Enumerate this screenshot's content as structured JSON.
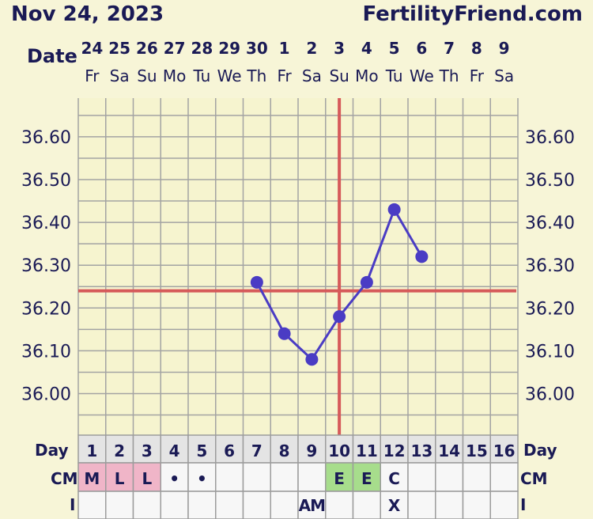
{
  "header": {
    "date_title": "Nov 24, 2023",
    "site": "FertilityFriend.com",
    "date_label": "Date",
    "day_label": "Day",
    "cm_label": "CM",
    "i_label": "I"
  },
  "colors": {
    "background": "#f7f5d7",
    "plot_bg": "#f6f4cf",
    "grid": "#a3a3a3",
    "line": "#4a3cc4",
    "coverline": "#d65a5a",
    "text": "#1a1a55",
    "pink_cell": "#f0b5c8",
    "green_cell": "#a7dd8c"
  },
  "chart_data": {
    "type": "line",
    "title": "",
    "xlabel": "",
    "ylabel": "",
    "ylim": [
      35.9,
      36.67
    ],
    "y_ticks": [
      "36.00",
      "36.10",
      "36.20",
      "36.30",
      "36.40",
      "36.50",
      "36.60"
    ],
    "grid": true,
    "date_numbers": [
      "24",
      "25",
      "26",
      "27",
      "28",
      "29",
      "30",
      "1",
      "2",
      "3",
      "4",
      "5",
      "6",
      "7",
      "8",
      "9"
    ],
    "weekdays": [
      "Fr",
      "Sa",
      "Su",
      "Mo",
      "Tu",
      "We",
      "Th",
      "Fr",
      "Sa",
      "Su",
      "Mo",
      "Tu",
      "We",
      "Th",
      "Fr",
      "Sa"
    ],
    "cycle_days": [
      "1",
      "2",
      "3",
      "4",
      "5",
      "6",
      "7",
      "8",
      "9",
      "10",
      "11",
      "12",
      "13",
      "14",
      "15",
      "16"
    ],
    "series": [
      {
        "values": [
          null,
          null,
          null,
          null,
          null,
          null,
          36.26,
          36.14,
          36.08,
          36.18,
          36.26,
          36.43,
          36.32,
          null,
          null,
          null
        ]
      }
    ],
    "coverline": 36.24,
    "ovulation_day": "10",
    "cm_row": [
      "M",
      "L",
      "L",
      "•",
      "•",
      "",
      "",
      "",
      "",
      "E",
      "E",
      "C",
      "",
      "",
      "",
      ""
    ],
    "cm_highlight": [
      "pink",
      "pink",
      "pink",
      "",
      "",
      "",
      "",
      "",
      "",
      "green",
      "green",
      "",
      "",
      "",
      "",
      ""
    ],
    "i_row": [
      "",
      "",
      "",
      "",
      "",
      "",
      "",
      "",
      "AM",
      "",
      "",
      "X",
      "",
      "",
      "",
      ""
    ]
  }
}
